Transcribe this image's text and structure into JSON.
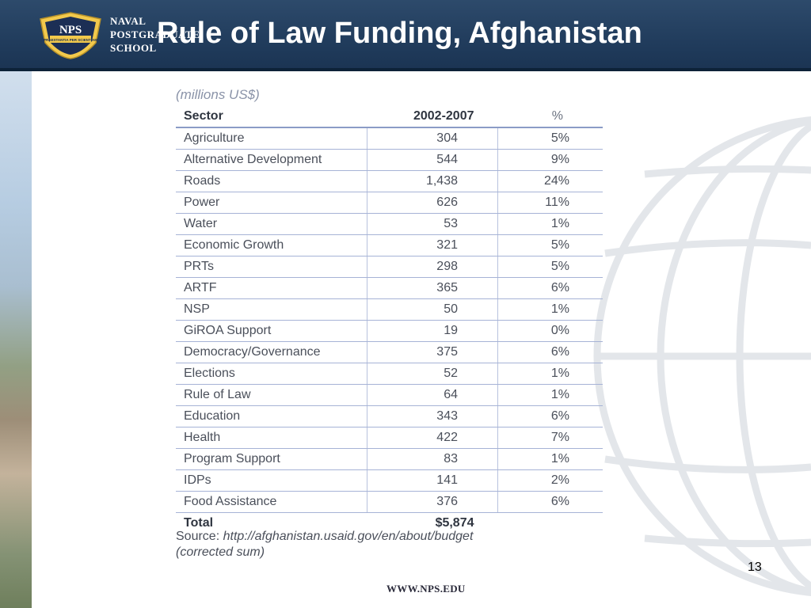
{
  "header": {
    "logo_text": "NPS",
    "logo_motto": "PRAESTANTIA PER SCIENTIAM",
    "school_lines": [
      "NAVAL",
      "POSTGRADUATE",
      "SCHOOL"
    ],
    "title": "Rule of Law Funding, Afghanistan"
  },
  "table": {
    "units": "(millions US$)",
    "columns": [
      "Sector",
      "2002-2007",
      "%"
    ],
    "rows": [
      {
        "sector": "Agriculture",
        "amount": "304",
        "pct": "5%"
      },
      {
        "sector": "Alternative Development",
        "amount": "544",
        "pct": "9%"
      },
      {
        "sector": "Roads",
        "amount": "1,438",
        "pct": "24%"
      },
      {
        "sector": "Power",
        "amount": "626",
        "pct": "11%"
      },
      {
        "sector": "Water",
        "amount": "53",
        "pct": "1%"
      },
      {
        "sector": "Economic Growth",
        "amount": "321",
        "pct": "5%"
      },
      {
        "sector": "PRTs",
        "amount": "298",
        "pct": "5%"
      },
      {
        "sector": "ARTF",
        "amount": "365",
        "pct": "6%"
      },
      {
        "sector": "NSP",
        "amount": "50",
        "pct": "1%"
      },
      {
        "sector": "GiROA Support",
        "amount": "19",
        "pct": "0%"
      },
      {
        "sector": "Democracy/Governance",
        "amount": "375",
        "pct": "6%"
      },
      {
        "sector": "Elections",
        "amount": "52",
        "pct": "1%"
      },
      {
        "sector": "Rule of Law",
        "amount": "64",
        "pct": "1%"
      },
      {
        "sector": "Education",
        "amount": "343",
        "pct": "6%"
      },
      {
        "sector": "Health",
        "amount": "422",
        "pct": "7%"
      },
      {
        "sector": "Program Support",
        "amount": "83",
        "pct": "1%"
      },
      {
        "sector": "IDPs",
        "amount": "141",
        "pct": "2%"
      },
      {
        "sector": "Food Assistance",
        "amount": "376",
        "pct": "6%"
      }
    ],
    "total": {
      "label": "Total",
      "amount": "$5,874"
    },
    "source_label": "Source:",
    "source_url": "http://afghanistan.usaid.gov/en/about/budget",
    "source_note": "(corrected sum)"
  },
  "footer": {
    "page_number": "13",
    "url": "WWW.NPS.EDU"
  },
  "colors": {
    "banner": "#1f3a5a",
    "table_rule": "#a6b3d6",
    "text": "#4a4f5a"
  }
}
